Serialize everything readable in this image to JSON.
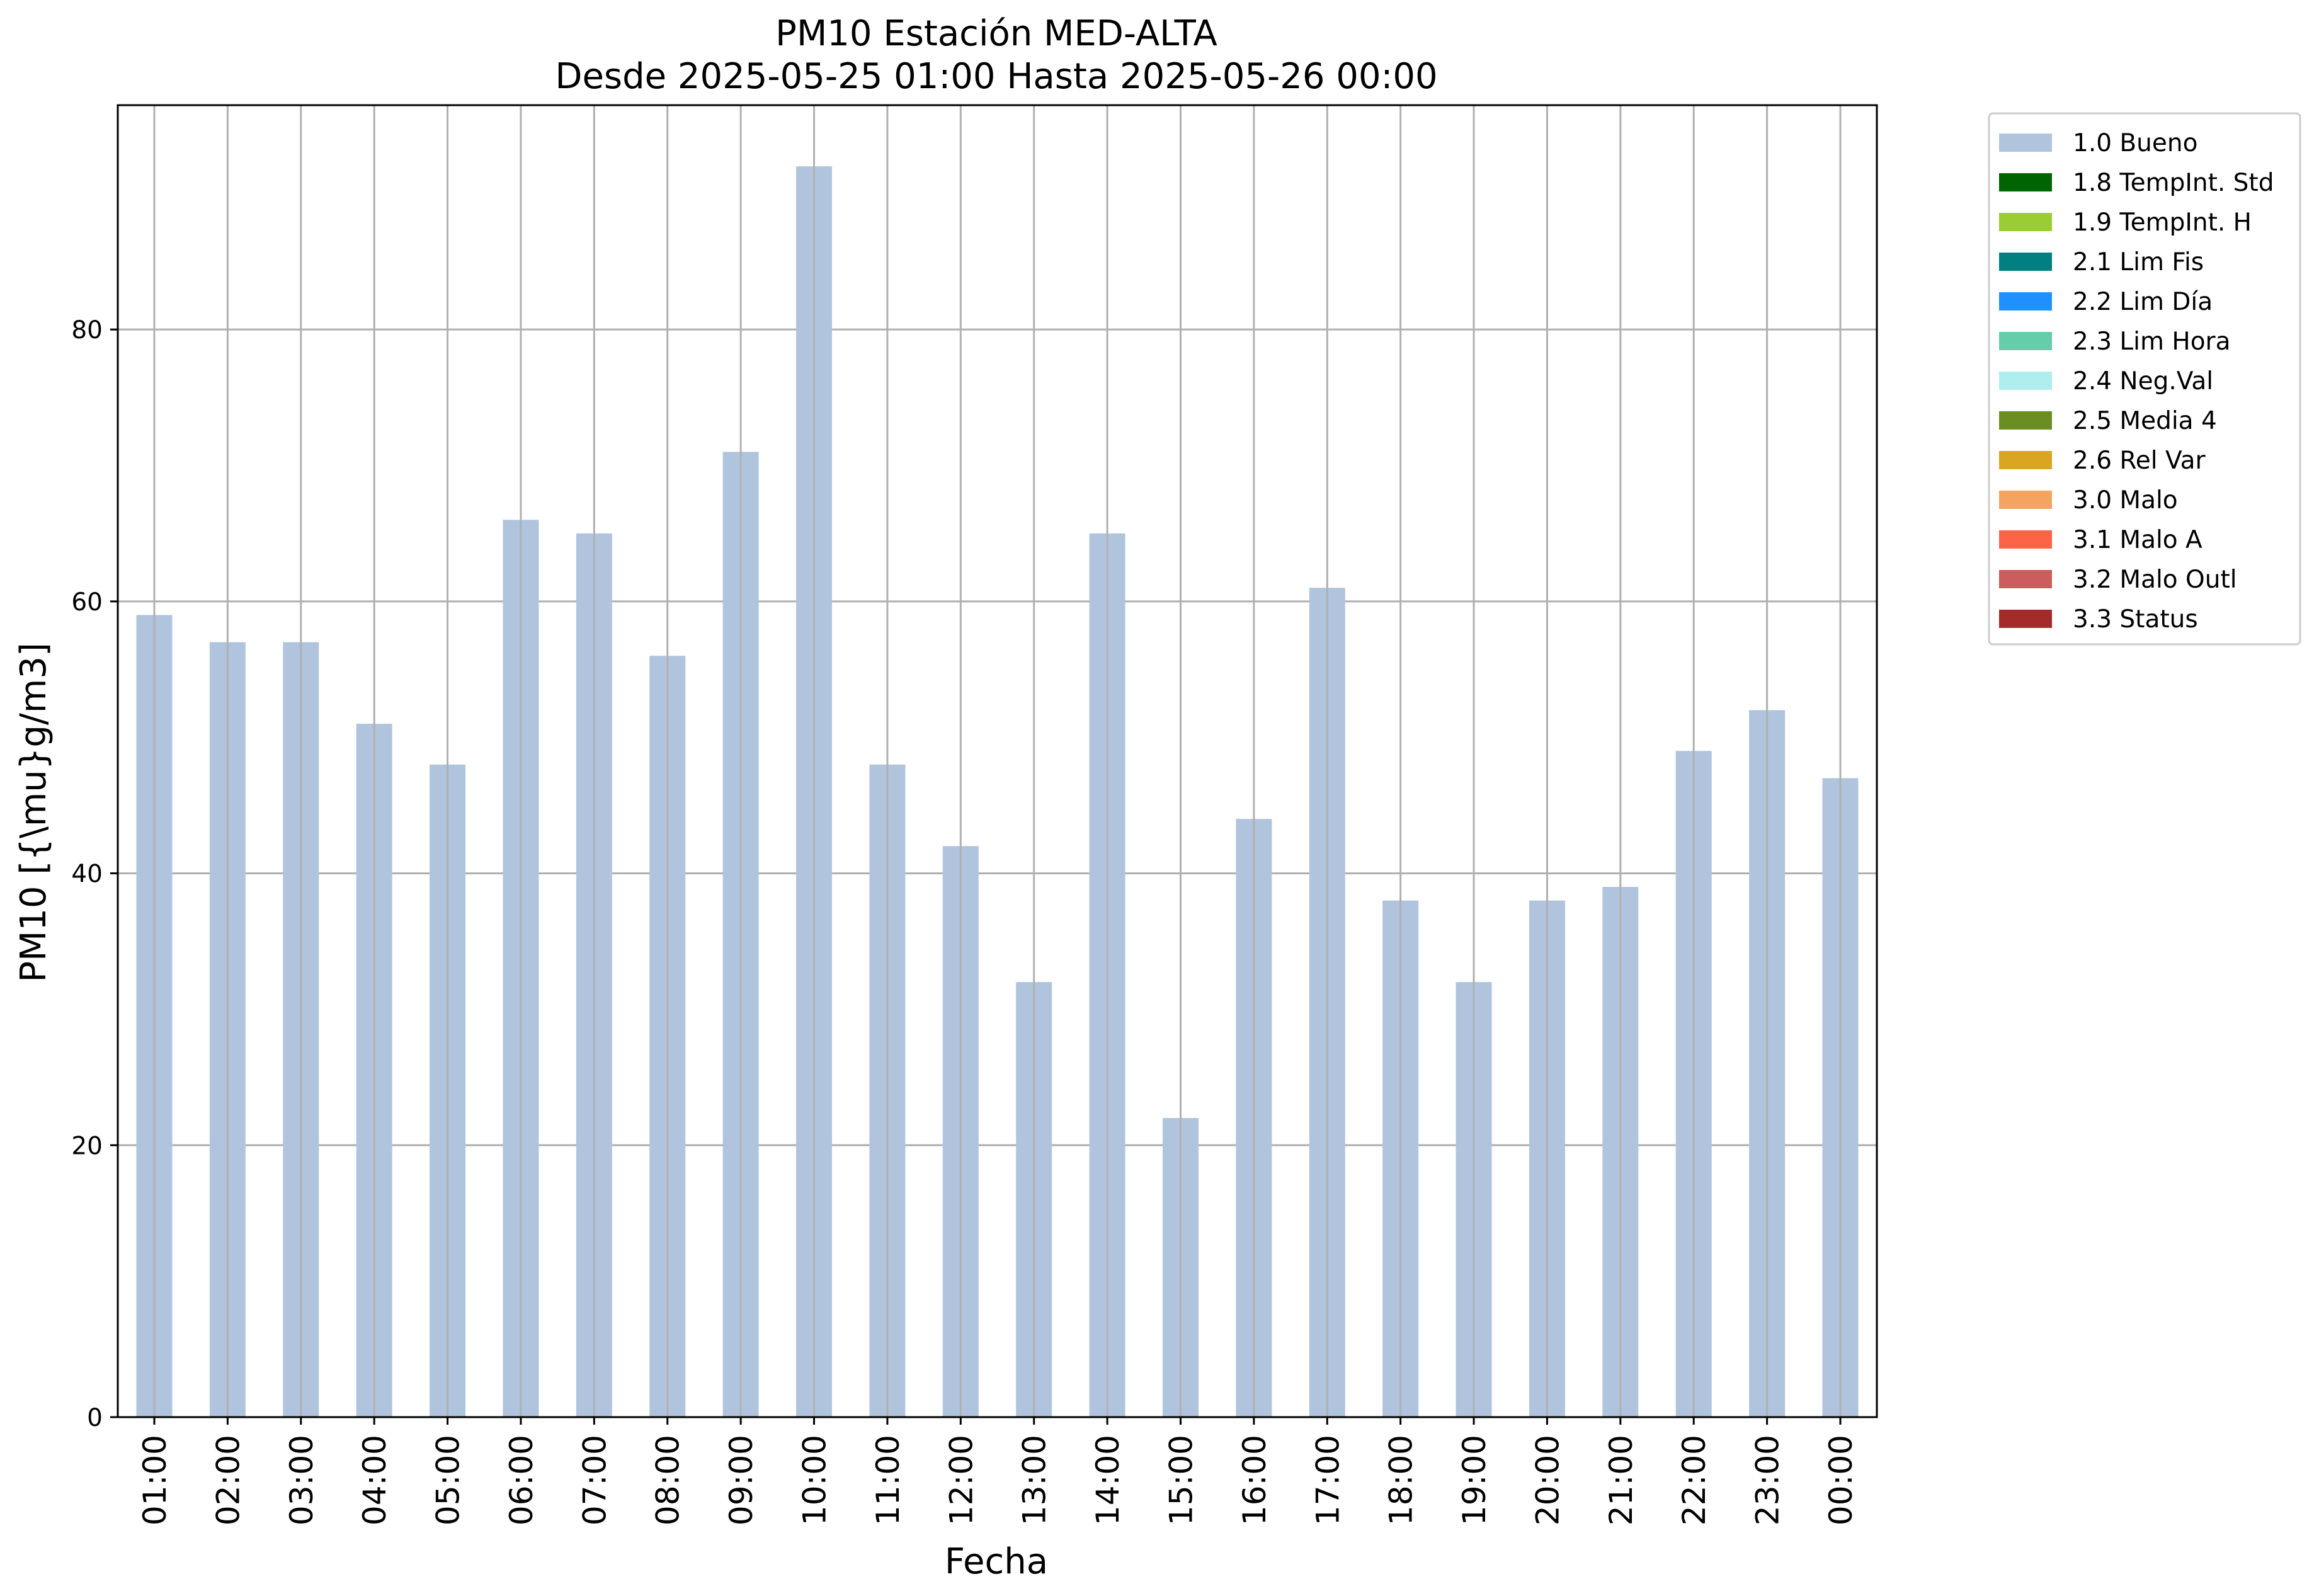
{
  "chart_data": {
    "type": "bar",
    "title": "PM10 Estación MED-ALTA",
    "subtitle": "Desde 2025-05-25 01:00 Hasta 2025-05-26 00:00",
    "xlabel": "Fecha",
    "ylabel": "PM10 [{\\mu}g/m3]",
    "ylim": [
      0,
      96.5
    ],
    "yticks": [
      0,
      20,
      40,
      60,
      80
    ],
    "grid": true,
    "legend_position": "outside-right-top",
    "categories": [
      "01:00",
      "02:00",
      "03:00",
      "04:00",
      "05:00",
      "06:00",
      "07:00",
      "08:00",
      "09:00",
      "10:00",
      "11:00",
      "12:00",
      "13:00",
      "14:00",
      "15:00",
      "16:00",
      "17:00",
      "18:00",
      "19:00",
      "20:00",
      "21:00",
      "22:00",
      "23:00",
      "00:00"
    ],
    "series": [
      {
        "name": "1.0 Bueno",
        "color": "#b0c4de",
        "values": [
          59,
          57,
          57,
          51,
          48,
          66,
          65,
          56,
          71,
          92,
          48,
          42,
          32,
          65,
          22,
          44,
          61,
          38,
          32,
          38,
          39,
          49,
          52,
          47
        ]
      }
    ],
    "legend": [
      {
        "label": "1.0 Bueno",
        "color": "#b0c4de"
      },
      {
        "label": "1.8 TempInt. Std",
        "color": "#006400"
      },
      {
        "label": "1.9 TempInt. H",
        "color": "#9acd32"
      },
      {
        "label": "2.1 Lim Fis",
        "color": "#008080"
      },
      {
        "label": "2.2 Lim Día",
        "color": "#1e90ff"
      },
      {
        "label": "2.3 Lim Hora",
        "color": "#66cdaa"
      },
      {
        "label": "2.4 Neg.Val",
        "color": "#afeeee"
      },
      {
        "label": "2.5 Media 4",
        "color": "#6b8e23"
      },
      {
        "label": "2.6 Rel Var",
        "color": "#daa520"
      },
      {
        "label": "3.0 Malo",
        "color": "#f4a460"
      },
      {
        "label": "3.1 Malo A",
        "color": "#ff6347"
      },
      {
        "label": "3.2 Malo Outl",
        "color": "#cd5c5c"
      },
      {
        "label": "3.3 Status",
        "color": "#a52a2a"
      }
    ]
  }
}
